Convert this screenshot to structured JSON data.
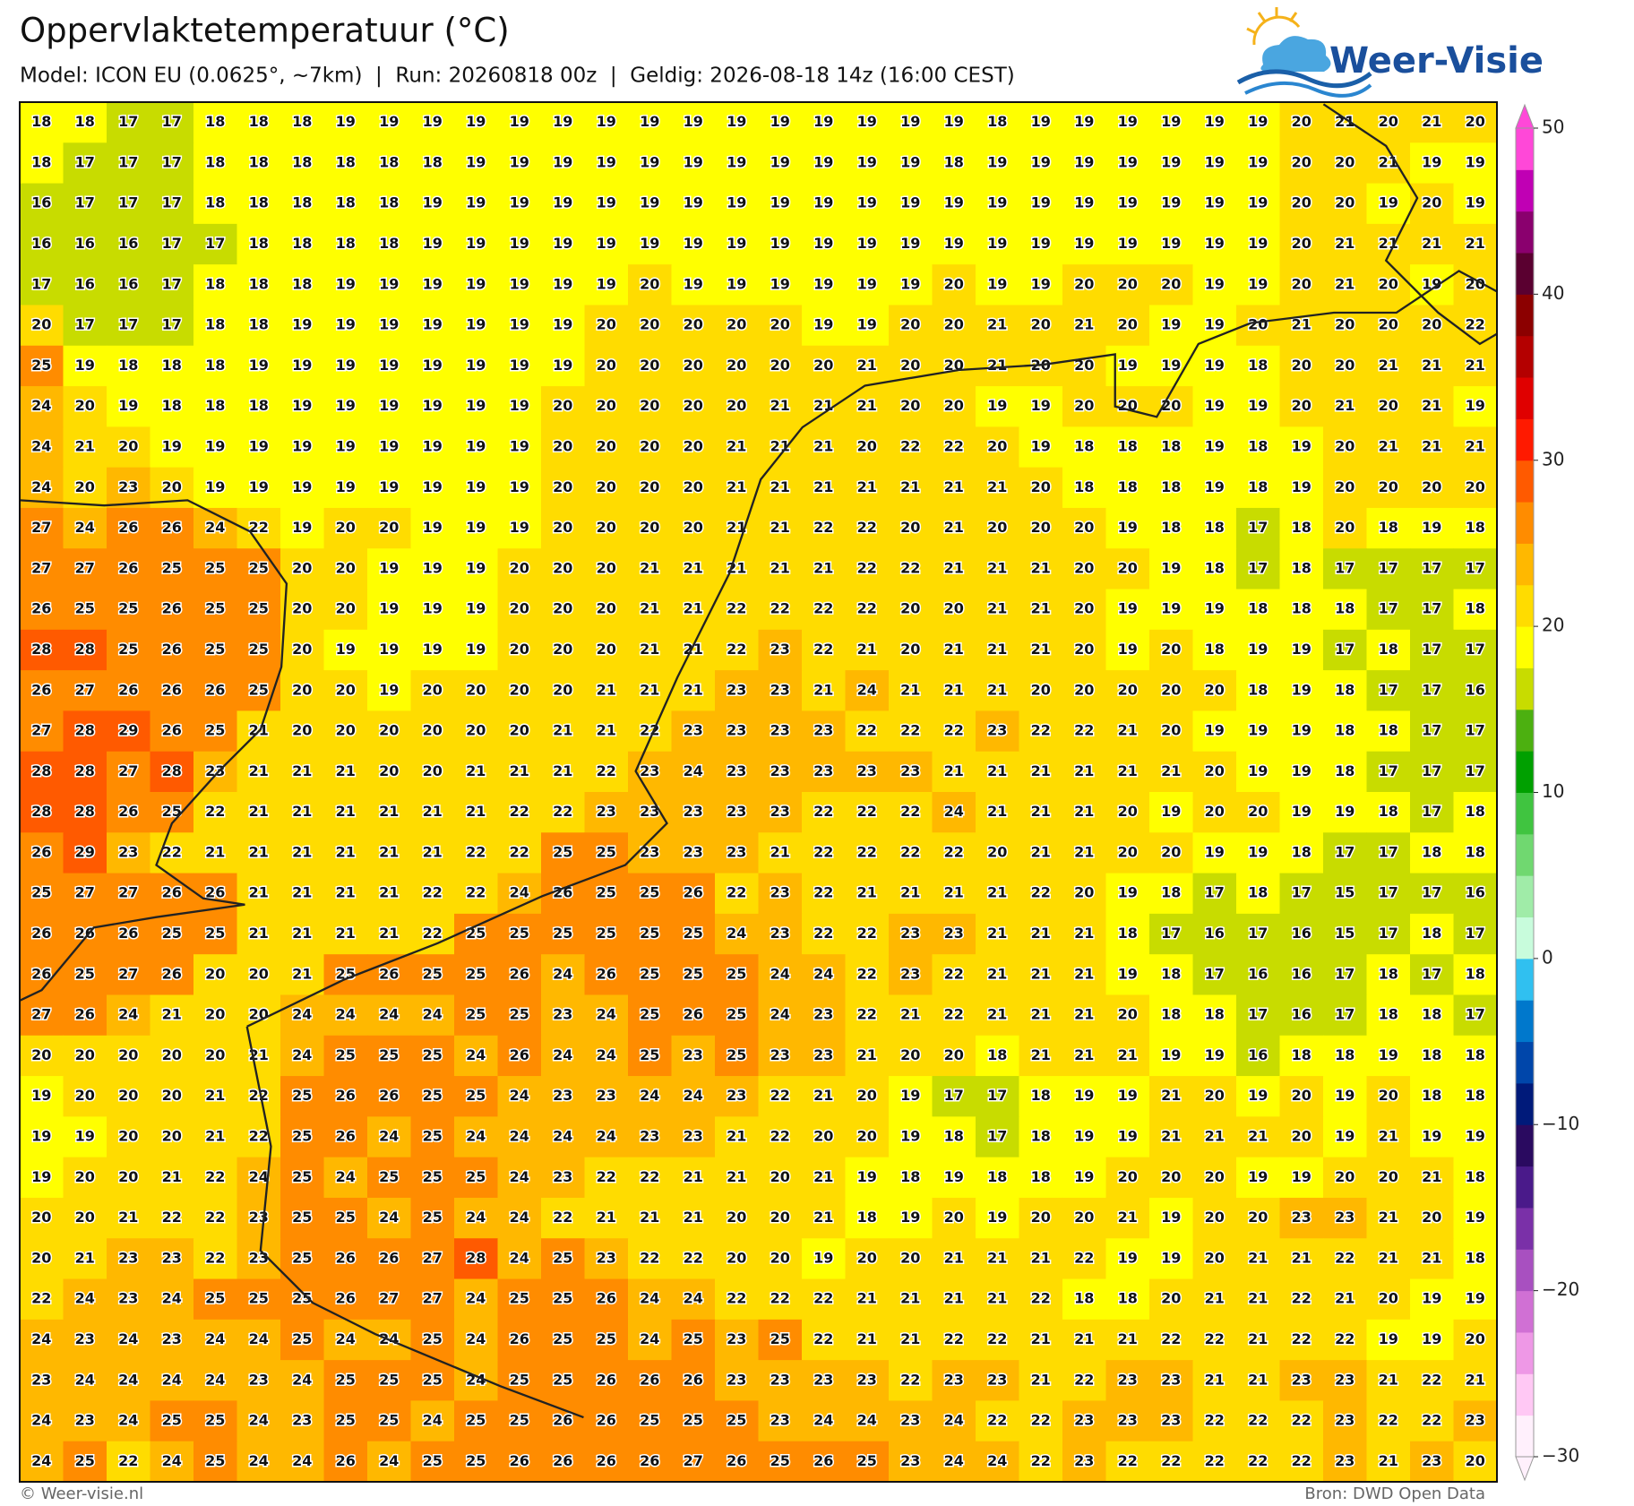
{
  "header": {
    "title": "Oppervlaktetemperatuur (°C)",
    "subtitle": "Model: ICON EU (0.0625°, ~7km)  |  Run: 20260818 00z  |  Geldig: 2026-08-18 14z (16:00 CEST)"
  },
  "logo": {
    "text": "Weer-Visie"
  },
  "chart_data": {
    "type": "heatmap",
    "values": [
      [
        18,
        18,
        17,
        17,
        18,
        18,
        18,
        19,
        19,
        19,
        19,
        19,
        19,
        19,
        19,
        19,
        19,
        19,
        19,
        19,
        19,
        19,
        18,
        19,
        19,
        19,
        19,
        19,
        19,
        20,
        21,
        20,
        21,
        20
      ],
      [
        18,
        17,
        17,
        17,
        18,
        18,
        18,
        18,
        18,
        18,
        19,
        19,
        19,
        19,
        19,
        19,
        19,
        19,
        19,
        19,
        19,
        18,
        19,
        19,
        19,
        19,
        19,
        19,
        19,
        20,
        20,
        21,
        19,
        19
      ],
      [
        16,
        17,
        17,
        17,
        18,
        18,
        18,
        18,
        18,
        19,
        19,
        19,
        19,
        19,
        19,
        19,
        19,
        19,
        19,
        19,
        19,
        19,
        19,
        19,
        19,
        19,
        19,
        19,
        19,
        20,
        20,
        19,
        20,
        19
      ],
      [
        16,
        16,
        16,
        17,
        17,
        18,
        18,
        18,
        18,
        19,
        19,
        19,
        19,
        19,
        19,
        19,
        19,
        19,
        19,
        19,
        19,
        19,
        19,
        19,
        19,
        19,
        19,
        19,
        19,
        20,
        21,
        21,
        21,
        21
      ],
      [
        17,
        16,
        16,
        17,
        18,
        18,
        18,
        19,
        19,
        19,
        19,
        19,
        19,
        19,
        20,
        19,
        19,
        19,
        19,
        19,
        19,
        20,
        19,
        19,
        20,
        20,
        20,
        19,
        19,
        20,
        21,
        20,
        19,
        20
      ],
      [
        20,
        17,
        17,
        17,
        18,
        18,
        19,
        19,
        19,
        19,
        19,
        19,
        19,
        20,
        20,
        20,
        20,
        20,
        19,
        19,
        20,
        20,
        21,
        20,
        21,
        20,
        19,
        19,
        20,
        21,
        20,
        20,
        20,
        22
      ],
      [
        25,
        19,
        18,
        18,
        18,
        19,
        19,
        19,
        19,
        19,
        19,
        19,
        19,
        20,
        20,
        20,
        20,
        20,
        20,
        21,
        20,
        20,
        21,
        20,
        20,
        19,
        19,
        19,
        18,
        20,
        20,
        21,
        21,
        21
      ],
      [
        24,
        20,
        19,
        18,
        18,
        18,
        19,
        19,
        19,
        19,
        19,
        19,
        20,
        20,
        20,
        20,
        20,
        21,
        21,
        21,
        20,
        20,
        19,
        19,
        20,
        20,
        20,
        19,
        19,
        20,
        21,
        20,
        21,
        19
      ],
      [
        24,
        21,
        20,
        19,
        19,
        19,
        19,
        19,
        19,
        19,
        19,
        19,
        20,
        20,
        20,
        20,
        21,
        21,
        21,
        20,
        22,
        22,
        20,
        19,
        18,
        18,
        18,
        19,
        18,
        19,
        20,
        21,
        21,
        21
      ],
      [
        24,
        20,
        23,
        20,
        19,
        19,
        19,
        19,
        19,
        19,
        19,
        19,
        20,
        20,
        20,
        20,
        21,
        21,
        21,
        21,
        21,
        21,
        21,
        20,
        18,
        18,
        18,
        19,
        18,
        19,
        20,
        20,
        20,
        20
      ],
      [
        27,
        24,
        26,
        26,
        24,
        22,
        19,
        20,
        20,
        19,
        19,
        19,
        20,
        20,
        20,
        20,
        21,
        21,
        22,
        22,
        20,
        21,
        20,
        20,
        20,
        19,
        18,
        18,
        17,
        18,
        20,
        18,
        19,
        18
      ],
      [
        27,
        27,
        26,
        25,
        25,
        25,
        20,
        20,
        19,
        19,
        19,
        20,
        20,
        20,
        21,
        21,
        21,
        21,
        21,
        22,
        22,
        21,
        21,
        21,
        20,
        20,
        19,
        18,
        17,
        18,
        17,
        17,
        17,
        17
      ],
      [
        26,
        25,
        25,
        26,
        25,
        25,
        20,
        20,
        19,
        19,
        19,
        20,
        20,
        20,
        21,
        21,
        22,
        22,
        22,
        22,
        20,
        20,
        21,
        21,
        20,
        19,
        19,
        19,
        18,
        18,
        18,
        17,
        17,
        18
      ],
      [
        28,
        28,
        25,
        26,
        25,
        25,
        20,
        19,
        19,
        19,
        19,
        20,
        20,
        20,
        21,
        21,
        22,
        23,
        22,
        21,
        20,
        21,
        21,
        21,
        20,
        19,
        20,
        18,
        19,
        19,
        17,
        18,
        17,
        17
      ],
      [
        26,
        27,
        26,
        26,
        26,
        25,
        20,
        20,
        19,
        20,
        20,
        20,
        20,
        21,
        21,
        21,
        23,
        23,
        21,
        24,
        21,
        21,
        21,
        20,
        20,
        20,
        20,
        20,
        18,
        19,
        18,
        17,
        17,
        16
      ],
      [
        27,
        28,
        29,
        26,
        25,
        21,
        20,
        20,
        20,
        20,
        20,
        20,
        21,
        21,
        22,
        23,
        23,
        23,
        23,
        22,
        22,
        22,
        23,
        22,
        22,
        21,
        20,
        19,
        19,
        19,
        18,
        18,
        17,
        17
      ],
      [
        28,
        28,
        27,
        28,
        23,
        21,
        21,
        21,
        20,
        20,
        21,
        21,
        21,
        22,
        23,
        24,
        23,
        23,
        23,
        23,
        23,
        21,
        21,
        21,
        21,
        21,
        21,
        20,
        19,
        19,
        18,
        17,
        17,
        17
      ],
      [
        28,
        28,
        26,
        25,
        22,
        21,
        21,
        21,
        21,
        21,
        21,
        22,
        22,
        23,
        23,
        23,
        23,
        23,
        22,
        22,
        22,
        24,
        21,
        21,
        21,
        20,
        19,
        20,
        20,
        19,
        19,
        18,
        17,
        18
      ],
      [
        26,
        29,
        23,
        22,
        21,
        21,
        21,
        21,
        21,
        21,
        22,
        22,
        25,
        25,
        23,
        23,
        23,
        21,
        22,
        22,
        22,
        22,
        20,
        21,
        21,
        20,
        20,
        19,
        19,
        18,
        17,
        17,
        18,
        18
      ],
      [
        25,
        27,
        27,
        26,
        26,
        21,
        21,
        21,
        21,
        22,
        22,
        24,
        26,
        25,
        25,
        26,
        22,
        23,
        22,
        21,
        21,
        21,
        21,
        22,
        20,
        19,
        18,
        17,
        18,
        17,
        15,
        17,
        17,
        16
      ],
      [
        26,
        26,
        26,
        25,
        25,
        21,
        21,
        21,
        21,
        22,
        25,
        25,
        25,
        25,
        25,
        25,
        24,
        23,
        22,
        22,
        23,
        23,
        21,
        21,
        21,
        18,
        17,
        16,
        17,
        16,
        15,
        17,
        18,
        17
      ],
      [
        26,
        25,
        27,
        26,
        20,
        20,
        21,
        25,
        26,
        25,
        25,
        26,
        24,
        26,
        25,
        25,
        25,
        24,
        24,
        22,
        23,
        22,
        21,
        21,
        21,
        19,
        18,
        17,
        16,
        16,
        17,
        18,
        17,
        18
      ],
      [
        27,
        26,
        24,
        21,
        20,
        20,
        24,
        24,
        24,
        24,
        25,
        25,
        23,
        24,
        25,
        26,
        25,
        24,
        23,
        22,
        21,
        22,
        21,
        21,
        21,
        20,
        18,
        18,
        17,
        16,
        17,
        18,
        18,
        17
      ],
      [
        20,
        20,
        20,
        20,
        20,
        21,
        24,
        25,
        25,
        25,
        24,
        26,
        24,
        24,
        25,
        23,
        25,
        23,
        23,
        21,
        20,
        20,
        18,
        21,
        21,
        21,
        19,
        19,
        16,
        18,
        18,
        19,
        18,
        18
      ],
      [
        19,
        20,
        20,
        20,
        21,
        22,
        25,
        26,
        26,
        25,
        25,
        24,
        23,
        23,
        24,
        24,
        23,
        22,
        21,
        20,
        19,
        17,
        17,
        18,
        19,
        19,
        21,
        20,
        19,
        20,
        19,
        20,
        18,
        18
      ],
      [
        19,
        19,
        20,
        20,
        21,
        22,
        25,
        26,
        24,
        25,
        24,
        24,
        24,
        24,
        23,
        23,
        21,
        22,
        20,
        20,
        19,
        18,
        17,
        18,
        19,
        19,
        21,
        21,
        21,
        20,
        19,
        21,
        19,
        19
      ],
      [
        19,
        20,
        20,
        21,
        22,
        24,
        25,
        24,
        25,
        25,
        25,
        24,
        23,
        22,
        22,
        21,
        21,
        20,
        21,
        19,
        18,
        19,
        18,
        18,
        19,
        20,
        20,
        20,
        19,
        19,
        20,
        20,
        21,
        18
      ],
      [
        20,
        20,
        21,
        22,
        22,
        23,
        25,
        25,
        24,
        25,
        24,
        24,
        22,
        21,
        21,
        21,
        20,
        20,
        21,
        18,
        19,
        20,
        19,
        20,
        20,
        21,
        19,
        20,
        20,
        23,
        23,
        21,
        20,
        19
      ],
      [
        20,
        21,
        23,
        23,
        22,
        23,
        25,
        26,
        26,
        27,
        28,
        24,
        25,
        23,
        22,
        22,
        20,
        20,
        19,
        20,
        20,
        21,
        21,
        21,
        22,
        19,
        19,
        20,
        21,
        21,
        22,
        21,
        21,
        18
      ],
      [
        22,
        24,
        23,
        24,
        25,
        25,
        25,
        26,
        27,
        27,
        24,
        25,
        25,
        26,
        24,
        24,
        22,
        22,
        22,
        21,
        21,
        21,
        21,
        22,
        18,
        18,
        20,
        21,
        21,
        22,
        21,
        20,
        19,
        19
      ],
      [
        24,
        23,
        24,
        23,
        24,
        24,
        25,
        24,
        24,
        25,
        24,
        26,
        25,
        25,
        24,
        25,
        23,
        25,
        22,
        21,
        21,
        22,
        22,
        21,
        21,
        21,
        22,
        22,
        21,
        22,
        22,
        19,
        19,
        20
      ],
      [
        23,
        24,
        24,
        24,
        24,
        23,
        24,
        25,
        25,
        25,
        24,
        25,
        25,
        26,
        26,
        26,
        23,
        23,
        23,
        23,
        22,
        23,
        23,
        21,
        22,
        23,
        23,
        21,
        21,
        23,
        23,
        21,
        22,
        21
      ],
      [
        24,
        23,
        24,
        25,
        25,
        24,
        23,
        25,
        25,
        24,
        25,
        25,
        26,
        26,
        25,
        25,
        25,
        23,
        24,
        24,
        23,
        24,
        22,
        22,
        23,
        23,
        23,
        22,
        22,
        22,
        23,
        22,
        22,
        23
      ],
      [
        24,
        25,
        22,
        24,
        25,
        24,
        24,
        26,
        24,
        25,
        25,
        26,
        26,
        26,
        26,
        27,
        26,
        25,
        26,
        25,
        23,
        24,
        24,
        22,
        23,
        22,
        22,
        22,
        22,
        22,
        23,
        21,
        23,
        20
      ]
    ],
    "colorbar": {
      "lim": [
        -30,
        50
      ],
      "ticks": [
        {
          "value": -30,
          "label": "−30"
        },
        {
          "value": -20,
          "label": "−20"
        },
        {
          "value": -10,
          "label": "−10"
        },
        0,
        10,
        20,
        30,
        40,
        50
      ],
      "colors": [
        "#fff0fc",
        "#ffc8f4",
        "#ee98e6",
        "#d070d4",
        "#a850c0",
        "#7a30a8",
        "#4a1a8a",
        "#2a0a60",
        "#001a7a",
        "#0046aa",
        "#0078cc",
        "#30c0f0",
        "#c8fcdc",
        "#a0eca8",
        "#70d870",
        "#40c440",
        "#00a000",
        "#4cb010",
        "#c8dc00",
        "#ffff00",
        "#ffdc00",
        "#ffb800",
        "#ff8c00",
        "#ff5a00",
        "#ff1a00",
        "#e00000",
        "#b40000",
        "#8c0000",
        "#5a0030",
        "#8a006e",
        "#c000b4",
        "#ff48d8"
      ]
    }
  },
  "footer": {
    "left": "© Weer-visie.nl",
    "right": "Bron: DWD Open Data"
  }
}
